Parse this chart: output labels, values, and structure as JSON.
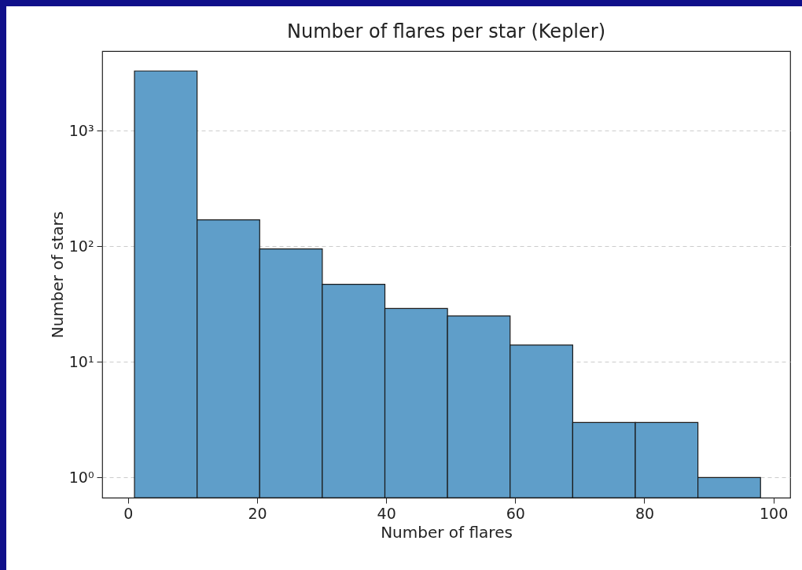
{
  "chart_data": {
    "type": "histogram",
    "title": "Number of flares per star (Kepler)",
    "xlabel": "Number of flares",
    "ylabel": "Number of stars",
    "bins": [
      1,
      10.7,
      20.4,
      30.1,
      39.8,
      49.5,
      59.2,
      68.9,
      78.6,
      88.3,
      98
    ],
    "values": [
      3300,
      170,
      95,
      47,
      29,
      25,
      14,
      3,
      3,
      1
    ],
    "color": "#5f9ec9",
    "xlim": [
      -4,
      102.6
    ],
    "xticks": [
      0,
      20,
      40,
      60,
      80,
      100
    ],
    "ylim": [
      0.67,
      4900
    ],
    "yticks": [
      {
        "value": 1,
        "label": "10⁰"
      },
      {
        "value": 10,
        "label": "10¹"
      },
      {
        "value": 100,
        "label": "10²"
      },
      {
        "value": 1000,
        "label": "10³"
      }
    ],
    "log": true,
    "grid": "y"
  }
}
